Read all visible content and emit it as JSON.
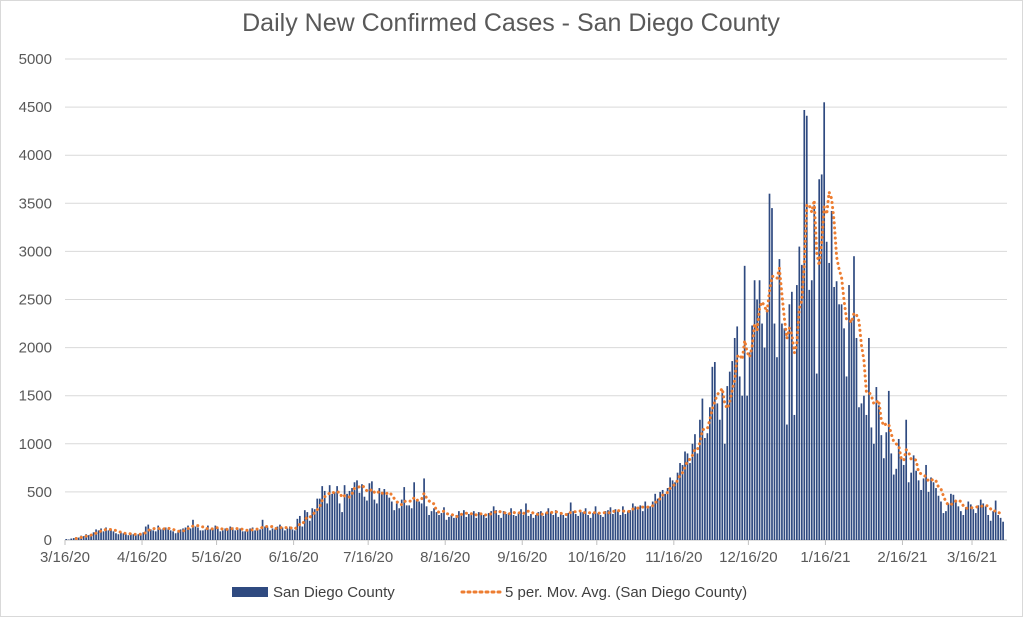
{
  "chart_data": {
    "type": "bar",
    "title": "Daily New Confirmed Cases - San Diego County",
    "xlabel": "",
    "ylabel": "",
    "ylim": [
      0,
      5000
    ],
    "yticks": [
      "0",
      "500",
      "1000",
      "1500",
      "2000",
      "2500",
      "3000",
      "3500",
      "4000",
      "4500",
      "5000"
    ],
    "xticks": [
      "3/16/20",
      "4/16/20",
      "5/16/20",
      "6/16/20",
      "7/16/20",
      "8/16/20",
      "9/16/20",
      "10/16/20",
      "11/16/20",
      "12/16/20",
      "1/16/21",
      "2/16/21",
      "3/16/21"
    ],
    "xtick_day_offsets": [
      0,
      31,
      61,
      92,
      122,
      153,
      184,
      214,
      245,
      275,
      306,
      337,
      365
    ],
    "start_date": "3/16/20",
    "grid": true,
    "legend_position": "bottom",
    "series": [
      {
        "name": "San Diego County",
        "type": "bar",
        "color": "#2f4a80",
        "values": [
          10,
          5,
          15,
          20,
          30,
          25,
          45,
          40,
          60,
          50,
          60,
          80,
          110,
          100,
          120,
          90,
          130,
          100,
          110,
          90,
          70,
          60,
          80,
          70,
          60,
          50,
          70,
          60,
          50,
          60,
          60,
          80,
          140,
          160,
          110,
          100,
          90,
          150,
          110,
          120,
          130,
          110,
          100,
          90,
          70,
          80,
          110,
          120,
          130,
          150,
          120,
          210,
          140,
          130,
          100,
          100,
          110,
          150,
          110,
          110,
          150,
          120,
          90,
          100,
          120,
          110,
          140,
          130,
          100,
          110,
          120,
          90,
          90,
          100,
          120,
          130,
          100,
          120,
          110,
          210,
          140,
          130,
          100,
          120,
          110,
          140,
          160,
          130,
          100,
          120,
          140,
          110,
          100,
          220,
          250,
          140,
          310,
          290,
          200,
          330,
          320,
          430,
          430,
          560,
          510,
          380,
          570,
          480,
          500,
          560,
          380,
          290,
          570,
          480,
          510,
          540,
          600,
          620,
          490,
          580,
          450,
          410,
          590,
          610,
          420,
          380,
          540,
          500,
          530,
          470,
          440,
          400,
          310,
          380,
          330,
          420,
          550,
          360,
          360,
          330,
          600,
          410,
          400,
          380,
          640,
          350,
          260,
          300,
          330,
          290,
          260,
          280,
          340,
          210,
          240,
          260,
          230,
          260,
          300,
          280,
          310,
          240,
          270,
          260,
          300,
          230,
          290,
          280,
          260,
          230,
          280,
          300,
          350,
          310,
          260,
          230,
          300,
          270,
          280,
          330,
          260,
          250,
          280,
          320,
          260,
          380,
          250,
          270,
          230,
          260,
          290,
          300,
          250,
          280,
          330,
          290,
          260,
          310,
          240,
          290,
          260,
          230,
          280,
          390,
          300,
          270,
          250,
          300,
          290,
          330,
          260,
          230,
          280,
          350,
          280,
          260,
          240,
          300,
          310,
          340,
          270,
          320,
          300,
          260,
          350,
          270,
          300,
          310,
          380,
          350,
          320,
          360,
          300,
          400,
          330,
          350,
          400,
          480,
          430,
          500,
          520,
          480,
          540,
          650,
          620,
          600,
          700,
          800,
          780,
          920,
          900,
          800,
          1000,
          1100,
          900,
          1250,
          1470,
          1060,
          1110,
          1380,
          1800,
          1850,
          1420,
          1250,
          1560,
          1000,
          1600,
          1750,
          1860,
          2100,
          2220,
          1700,
          1500,
          2850,
          1500,
          1950,
          2230,
          2700,
          2500,
          2700,
          2250,
          2000,
          2400,
          3600,
          3450,
          2250,
          1900,
          2920,
          2250,
          2200,
          1200,
          2450,
          2580,
          1300,
          2650,
          3050,
          2860,
          4470,
          4410,
          2600,
          2700,
          3480,
          1730,
          3750,
          3800,
          4550,
          3100,
          2880,
          3420,
          2630,
          2690,
          2450,
          2450,
          2200,
          1700,
          2650,
          2300,
          2950,
          2100,
          1380,
          1420,
          1500,
          1300,
          2100,
          1170,
          1000,
          1590,
          1400,
          1090,
          850,
          1120,
          1550,
          900,
          680,
          740,
          1050,
          870,
          780,
          1250,
          600,
          700,
          880,
          720,
          620,
          520,
          640,
          780,
          500,
          650,
          600,
          540,
          460,
          400,
          280,
          300,
          380,
          480,
          470,
          400,
          350,
          300,
          260,
          340,
          400,
          370,
          320,
          280,
          360,
          420,
          380,
          350,
          260,
          200,
          300,
          410,
          260,
          230,
          190
        ]
      },
      {
        "name": "5 per. Mov. Avg. (San Diego County)",
        "type": "line",
        "style": "dotted",
        "color": "#ed7d31",
        "period": 5
      }
    ]
  }
}
